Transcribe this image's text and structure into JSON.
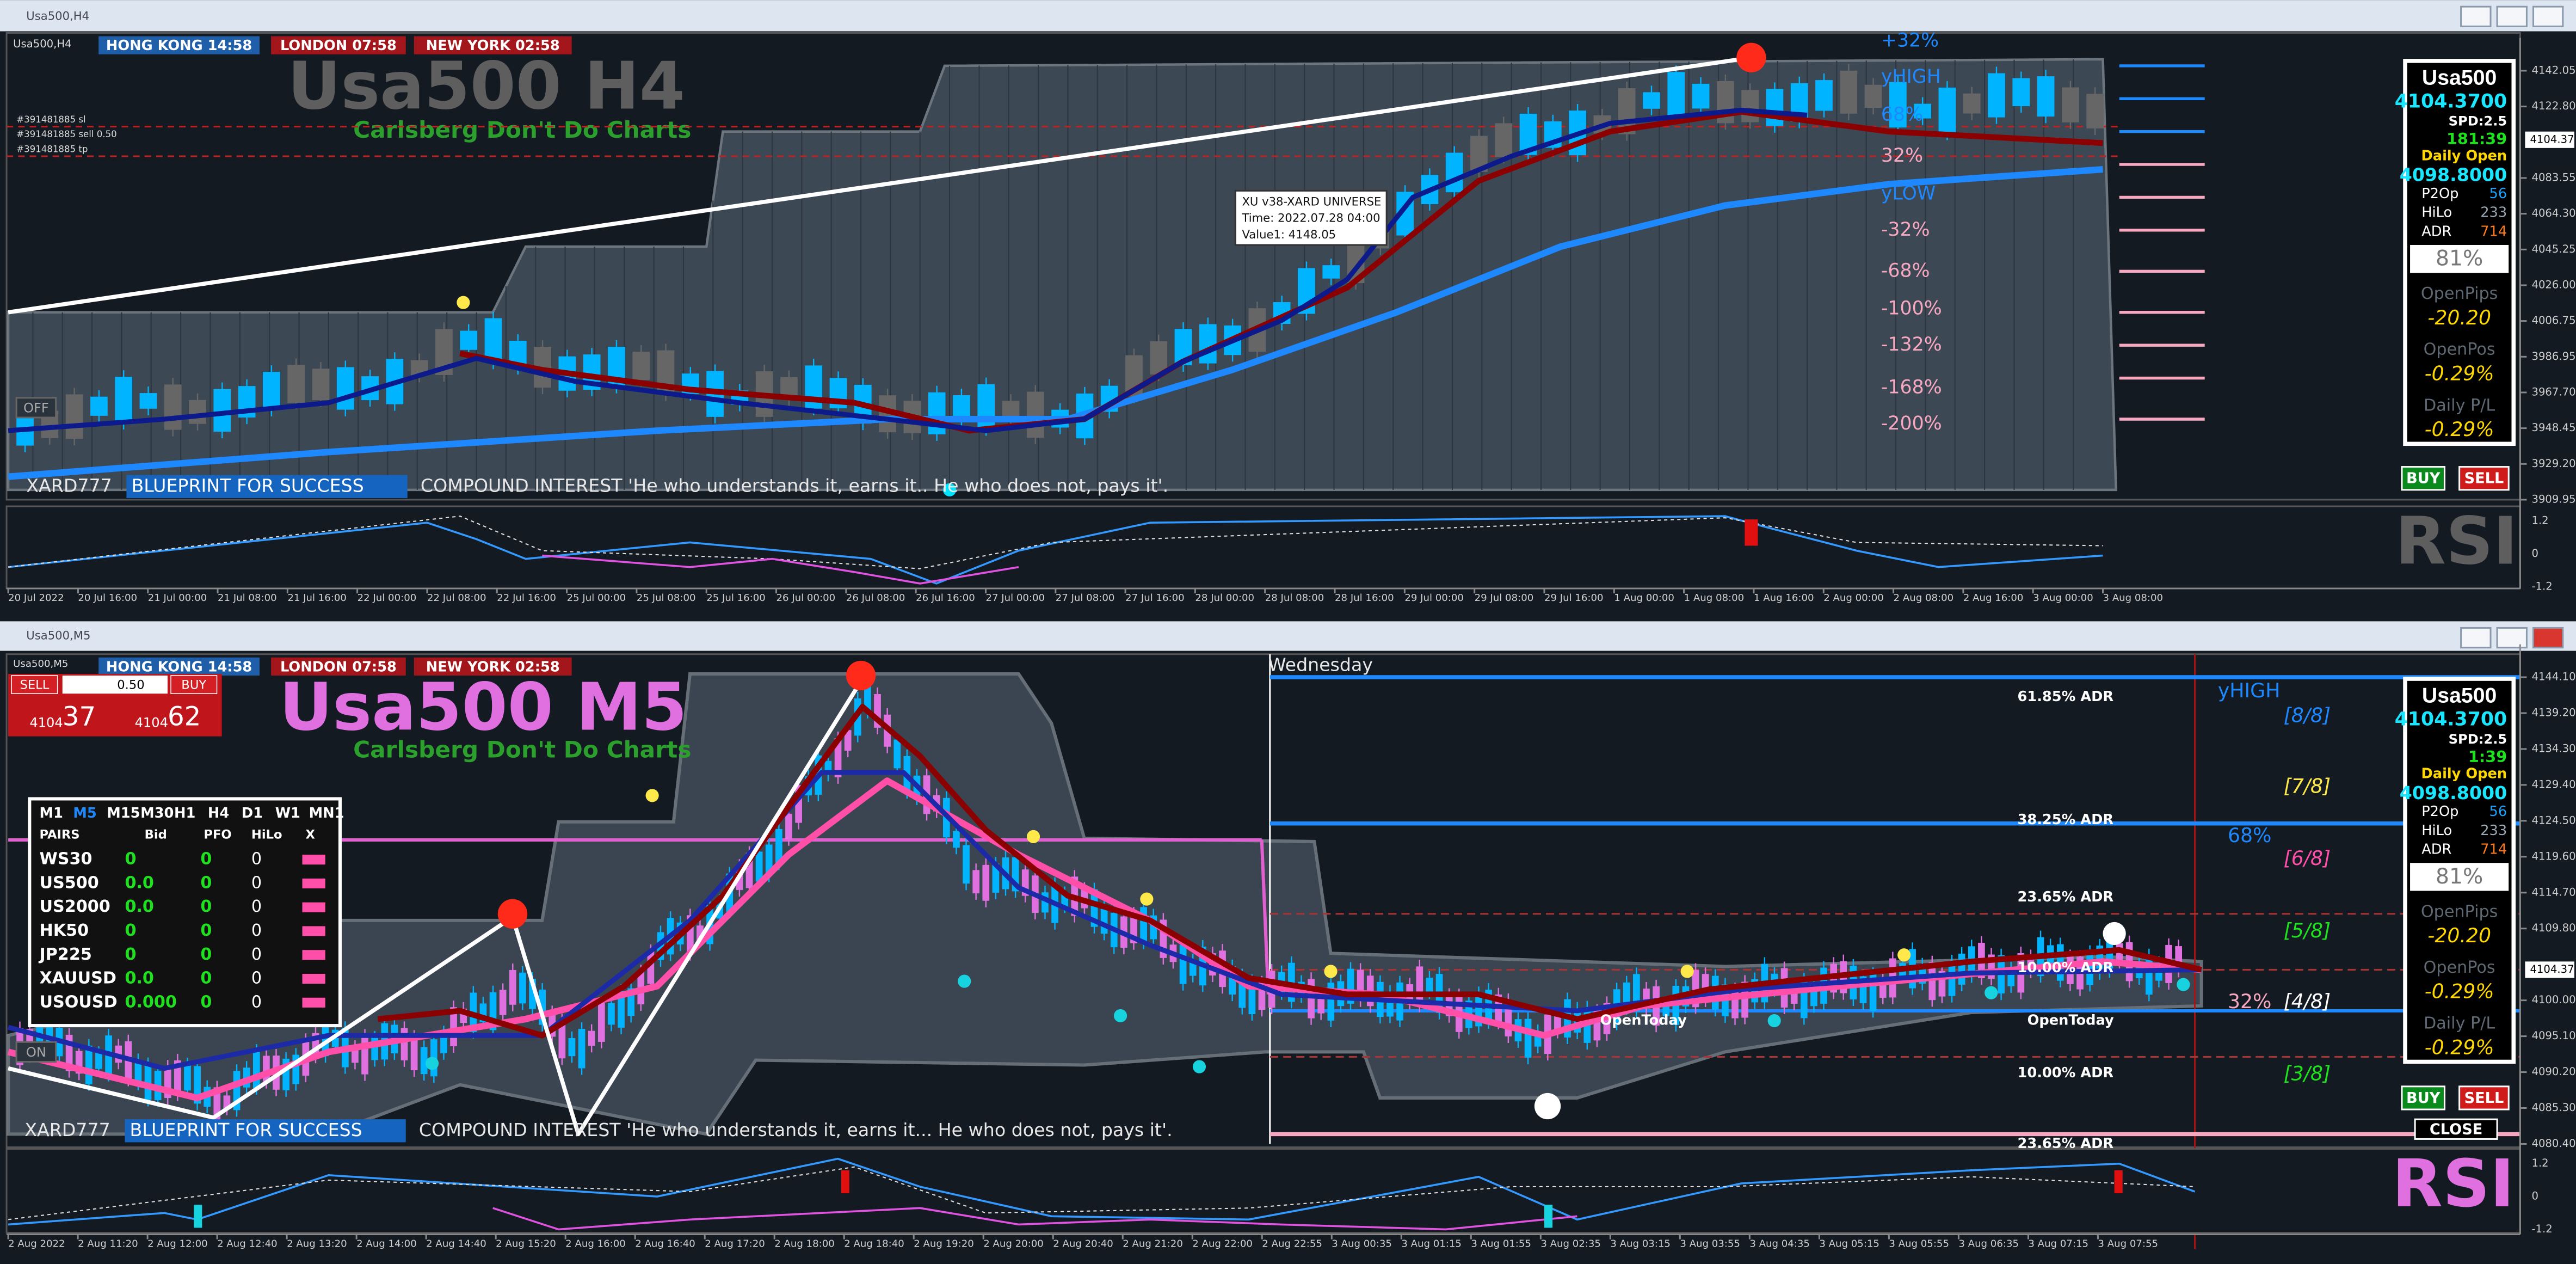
{
  "top": {
    "window_title": "Usa500,H4",
    "chart_label": "Usa500,H4",
    "sessions": [
      "HONG KONG 14:58",
      "LONDON 07:58",
      "NEW YORK 02:58"
    ],
    "symbol_title": "Usa500 H4",
    "tagline": "Carlsberg Don't Do Charts",
    "orders": [
      "#391481885 sl",
      "#391481885 sell 0.50",
      "#391481885 tp"
    ],
    "levels": [
      "+32%",
      "yHIGH",
      "68%",
      "32%",
      "yLOW",
      "-32%",
      "-68%",
      "-100%",
      "-132%",
      "-168%",
      "-200%"
    ],
    "tooltip": [
      "XU v38-XARD UNIVERSE",
      "Time: 2022.07.28 04:00",
      "Value1: 4148.05"
    ],
    "toggle": "OFF",
    "banner": {
      "name": "XARD777",
      "highlight": "BLUEPRINT FOR SUCCESS",
      "text": "COMPOUND INTEREST  'He who understands it, earns it.. He who does not, pays it'."
    },
    "panel": {
      "symbol": "Usa500",
      "price": "4104.3700",
      "spread": "SPD:2.5",
      "timer": "181:39",
      "open_label": "Daily Open",
      "open_price": "4098.8000",
      "rows": [
        [
          "P2Op",
          "56"
        ],
        [
          "HiLo",
          "233"
        ],
        [
          "ADR",
          "714"
        ]
      ],
      "percent": "81%",
      "stats": [
        [
          "OpenPips",
          "-20.20"
        ],
        [
          "OpenPos",
          "-0.29%"
        ],
        [
          "Daily P/L",
          "-0.29%"
        ]
      ]
    },
    "buy": "BUY",
    "sell": "SELL",
    "rsi": "RSI",
    "price_axis": [
      "4142.05",
      "4122.80",
      "4083.55",
      "4064.30",
      "4045.25",
      "4026.00",
      "4006.75",
      "3986.95",
      "3967.70",
      "3948.45",
      "3929.20",
      "3909.95"
    ],
    "current_price": "4104.37",
    "rsi_axis": [
      "1.2",
      "0",
      "-1.2"
    ],
    "time_axis": [
      "20 Jul 2022",
      "20 Jul 16:00",
      "21 Jul 00:00",
      "21 Jul 08:00",
      "21 Jul 16:00",
      "22 Jul 00:00",
      "22 Jul 08:00",
      "22 Jul 16:00",
      "25 Jul 00:00",
      "25 Jul 08:00",
      "25 Jul 16:00",
      "26 Jul 00:00",
      "26 Jul 08:00",
      "26 Jul 16:00",
      "27 Jul 00:00",
      "27 Jul 08:00",
      "27 Jul 16:00",
      "28 Jul 00:00",
      "28 Jul 08:00",
      "28 Jul 16:00",
      "29 Jul 00:00",
      "29 Jul 08:00",
      "29 Jul 16:00",
      "1 Aug 00:00",
      "1 Aug 08:00",
      "1 Aug 16:00",
      "2 Aug 00:00",
      "2 Aug 08:00",
      "2 Aug 16:00",
      "3 Aug 00:00",
      "3 Aug 08:00"
    ]
  },
  "bottom": {
    "window_title": "Usa500,M5",
    "chart_label": "Usa500,M5",
    "sessions": [
      "HONG KONG 14:58",
      "LONDON 07:58",
      "NEW YORK 02:58"
    ],
    "symbol_title": "Usa500 M5",
    "tagline": "Carlsberg Don't Do Charts",
    "trade": {
      "sell": "SELL",
      "buy": "BUY",
      "lots": "0.50",
      "bid_big": "4104",
      "bid_small": "37",
      "ask_big": "4104",
      "ask_small": "62"
    },
    "dashboard": {
      "timeframes": [
        "M1",
        "M5",
        "M15",
        "M30",
        "H1",
        "H4",
        "D1",
        "W1",
        "MN1"
      ],
      "columns": [
        "PAIRS",
        "Bid",
        "PFO",
        "HiLo",
        "X"
      ],
      "rows": [
        [
          "WS30",
          "0",
          "0",
          "0"
        ],
        [
          "US500",
          "0.0",
          "0",
          "0"
        ],
        [
          "US2000",
          "0.0",
          "0",
          "0"
        ],
        [
          "HK50",
          "0",
          "0",
          "0"
        ],
        [
          "JP225",
          "0",
          "0",
          "0"
        ],
        [
          "XAUUSD",
          "0.0",
          "0",
          "0"
        ],
        [
          "USOUSD",
          "0.000",
          "0",
          "0"
        ]
      ]
    },
    "day": "Wednesday",
    "adr_levels": [
      "61.85% ADR",
      "38.25% ADR",
      "23.65% ADR",
      "10.00% ADR",
      "10.00% ADR",
      "23.65% ADR"
    ],
    "open_today": [
      "OpenToday",
      "OpenToday"
    ],
    "fib_labels": [
      "yHIGH",
      "[8/8]",
      "[7/8]",
      "68%",
      "[6/8]",
      "[5/8]",
      "32%",
      "[4/8]",
      "[3/8]"
    ],
    "toggle": "ON",
    "banner": {
      "name": "XARD777",
      "highlight": "BLUEPRINT FOR SUCCESS",
      "text": "COMPOUND INTEREST  'He who understands it, earns it... He who does not, pays it'."
    },
    "panel": {
      "symbol": "Usa500",
      "price": "4104.3700",
      "spread": "SPD:2.5",
      "timer": "1:39",
      "open_label": "Daily Open",
      "open_price": "4098.8000",
      "rows": [
        [
          "P2Op",
          "56"
        ],
        [
          "HiLo",
          "233"
        ],
        [
          "ADR",
          "714"
        ]
      ],
      "percent": "81%",
      "stats": [
        [
          "OpenPips",
          "-20.20"
        ],
        [
          "OpenPos",
          "-0.29%"
        ],
        [
          "Daily P/L",
          "-0.29%"
        ]
      ]
    },
    "buy": "BUY",
    "sell": "SELL",
    "close": "CLOSE",
    "rsi": "RSI",
    "price_axis": [
      "4144.10",
      "4139.20",
      "4134.30",
      "4129.40",
      "4124.50",
      "4119.60",
      "4114.70",
      "4109.80",
      "4100.00",
      "4095.10",
      "4090.20",
      "4085.30",
      "4080.40"
    ],
    "current_price": "4104.37",
    "rsi_axis": [
      "1.2",
      "0",
      "-1.2"
    ],
    "time_axis": [
      "2 Aug 2022",
      "2 Aug 11:20",
      "2 Aug 12:00",
      "2 Aug 12:40",
      "2 Aug 13:20",
      "2 Aug 14:00",
      "2 Aug 14:40",
      "2 Aug 15:20",
      "2 Aug 16:00",
      "2 Aug 16:40",
      "2 Aug 17:20",
      "2 Aug 18:00",
      "2 Aug 18:40",
      "2 Aug 19:20",
      "2 Aug 20:00",
      "2 Aug 20:40",
      "2 Aug 21:20",
      "2 Aug 22:00",
      "2 Aug 22:55",
      "3 Aug 00:35",
      "3 Aug 01:15",
      "3 Aug 01:55",
      "3 Aug 02:35",
      "3 Aug 03:15",
      "3 Aug 03:55",
      "3 Aug 04:35",
      "3 Aug 05:15",
      "3 Aug 05:55",
      "3 Aug 06:35",
      "3 Aug 07:15",
      "3 Aug 07:55"
    ]
  }
}
